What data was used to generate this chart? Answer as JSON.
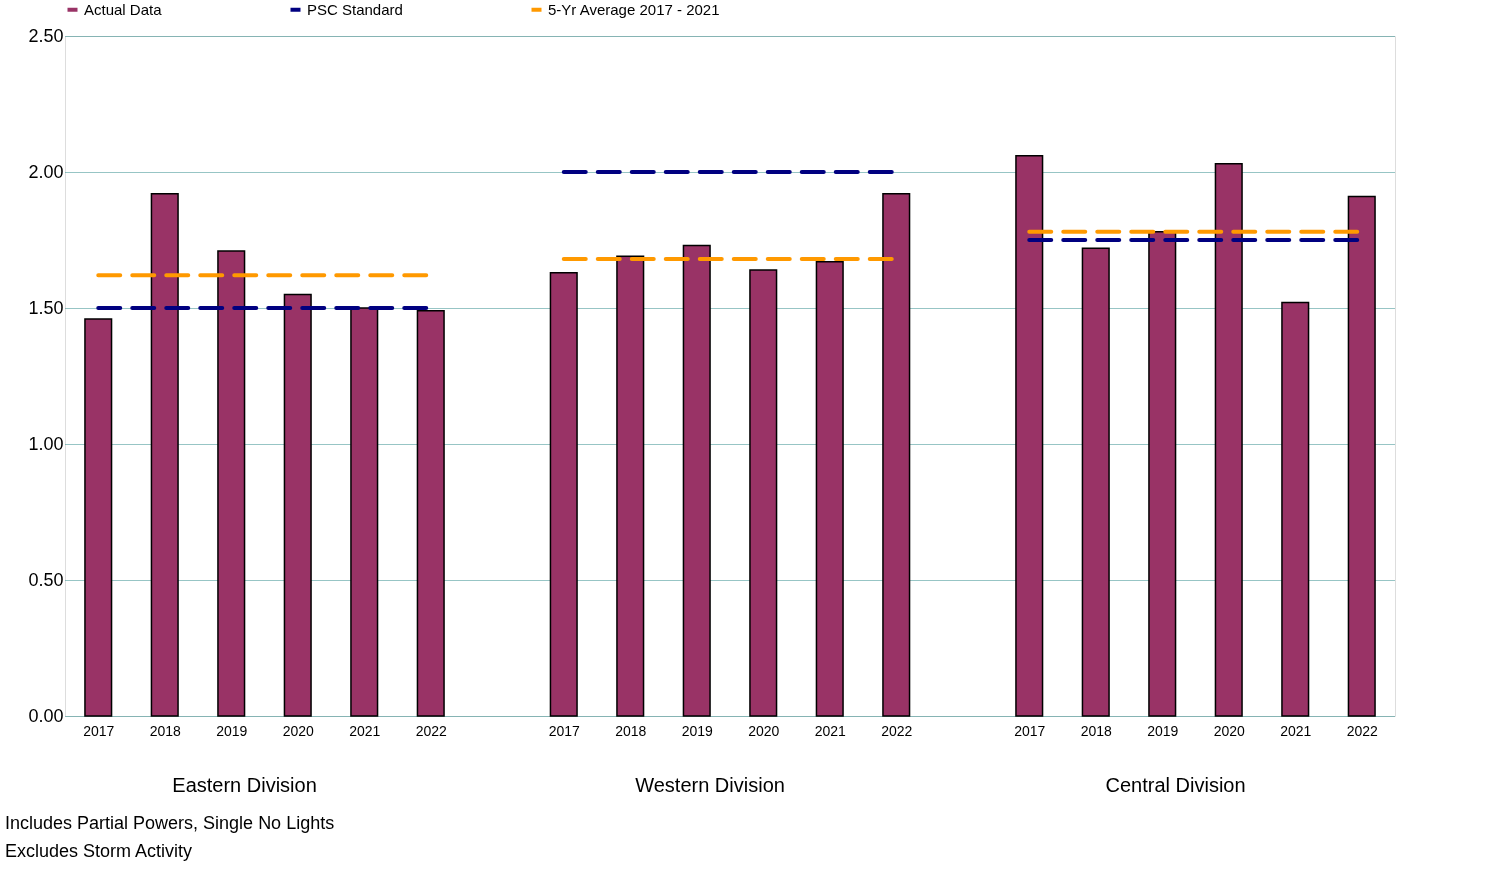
{
  "chart_data": {
    "type": "bar",
    "categories": [
      "2017",
      "2018",
      "2019",
      "2020",
      "2021",
      "2022",
      null,
      "2017",
      "2018",
      "2019",
      "2020",
      "2021",
      "2022",
      null,
      "2017",
      "2018",
      "2019",
      "2020",
      "2021",
      "2022"
    ],
    "series": [
      {
        "name": "Actual Data",
        "color": "#993366",
        "values": [
          1.46,
          1.92,
          1.71,
          1.55,
          1.5,
          1.49,
          null,
          1.63,
          1.69,
          1.73,
          1.64,
          1.67,
          1.92,
          null,
          2.06,
          1.72,
          1.78,
          2.03,
          1.52,
          1.91
        ]
      },
      {
        "name": "PSC Standard",
        "type": "line",
        "color": "#000080",
        "line_style": "dashed",
        "values": [
          1.5,
          1.5,
          1.5,
          1.5,
          1.5,
          1.5,
          null,
          2.0,
          2.0,
          2.0,
          2.0,
          2.0,
          2.0,
          null,
          1.75,
          1.75,
          1.75,
          1.75,
          1.75,
          1.75
        ]
      },
      {
        "name": "5-Yr Average 2017 - 2021",
        "type": "line",
        "color": "#ff9900",
        "line_style": "dashed",
        "values": [
          1.62,
          1.62,
          1.62,
          1.62,
          1.62,
          1.62,
          null,
          1.68,
          1.68,
          1.68,
          1.68,
          1.68,
          1.68,
          null,
          1.78,
          1.78,
          1.78,
          1.78,
          1.78,
          1.78
        ]
      }
    ],
    "ylim": [
      0,
      2.5
    ],
    "yticks": [
      {
        "value": 0,
        "label": "0.00"
      },
      {
        "value": 0.5,
        "label": "0.50"
      },
      {
        "value": 1,
        "label": "1.00"
      },
      {
        "value": 1.5,
        "label": "1.50"
      },
      {
        "value": 2,
        "label": "2.00"
      },
      {
        "value": 2.5,
        "label": "2.50"
      }
    ],
    "grid": "y",
    "legend": "top",
    "annotations": [
      "Eastern Division",
      "Western Division",
      "Central Division",
      "Includes Partial Powers, Single No Lights",
      "Excludes Storm Activity"
    ]
  }
}
